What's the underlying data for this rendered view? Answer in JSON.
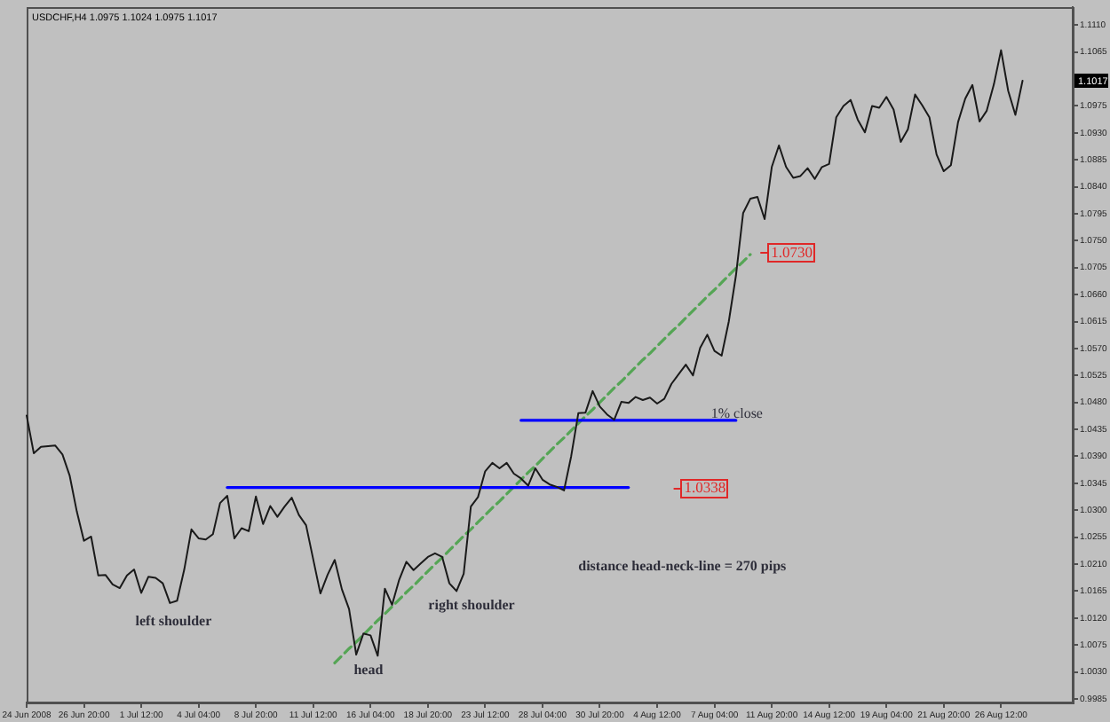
{
  "chart_data": {
    "type": "line",
    "title": "USDCHF,H4 1.0975 1.1024 1.0975 1.1017",
    "marker": "none",
    "categories": [
      "24 Jun 2008",
      null,
      null,
      null,
      null,
      null,
      null,
      null,
      "26 Jun 20:00",
      null,
      null,
      null,
      null,
      null,
      null,
      null,
      "1 Jul 12:00",
      null,
      null,
      null,
      null,
      null,
      null,
      null,
      "4 Jul 04:00",
      null,
      null,
      null,
      null,
      null,
      null,
      null,
      "8 Jul 20:00",
      null,
      null,
      null,
      null,
      null,
      null,
      null,
      "11 Jul 12:00",
      null,
      null,
      null,
      null,
      null,
      null,
      null,
      "16 Jul 04:00",
      null,
      null,
      null,
      null,
      null,
      null,
      null,
      "18 Jul 20:00",
      null,
      null,
      null,
      null,
      null,
      null,
      null,
      "23 Jul 12:00",
      null,
      null,
      null,
      null,
      null,
      null,
      null,
      "28 Jul 04:00",
      null,
      null,
      null,
      null,
      null,
      null,
      null,
      "30 Jul 20:00",
      null,
      null,
      null,
      null,
      null,
      null,
      null,
      "4 Aug 12:00",
      null,
      null,
      null,
      null,
      null,
      null,
      null,
      "7 Aug 04:00",
      null,
      null,
      null,
      null,
      null,
      null,
      null,
      "11 Aug 20:00",
      null,
      null,
      null,
      null,
      null,
      null,
      null,
      "14 Aug 12:00",
      null,
      null,
      null,
      null,
      null,
      null,
      null,
      "19 Aug 04:00",
      null,
      null,
      null,
      null,
      null,
      null,
      null,
      "21 Aug 20:00",
      null,
      null,
      null,
      null,
      null,
      null,
      null,
      "26 Aug 12:00",
      null,
      null,
      null,
      null,
      null,
      null,
      null,
      null,
      null,
      null
    ],
    "ylim": [
      0.9979,
      1.114
    ],
    "yticks": [
      0.9985,
      {
        "value": 1.003,
        "label": "1.0030"
      },
      1.0075,
      {
        "value": 1.012,
        "label": "1.0120"
      },
      1.0165,
      {
        "value": 1.021,
        "label": "1.0210"
      },
      1.0255,
      {
        "value": 1.03,
        "label": "1.0300"
      },
      1.0345,
      {
        "value": 1.039,
        "label": "1.0390"
      },
      1.0435,
      {
        "value": 1.048,
        "label": "1.0480"
      },
      1.0525,
      {
        "value": 1.057,
        "label": "1.0570"
      },
      1.0615,
      {
        "value": 1.066,
        "label": "1.0660"
      },
      1.0705,
      {
        "value": 1.075,
        "label": "1.0750"
      },
      1.0795,
      {
        "value": 1.084,
        "label": "1.0840"
      },
      1.0885,
      {
        "value": 1.093,
        "label": "1.0930"
      },
      1.0975,
      {
        "value": 1.102,
        "label": null
      },
      1.1065,
      {
        "value": 1.111,
        "label": "1.1110"
      }
    ],
    "series": [
      {
        "color": "#1a1a1a",
        "values": [
          1.0458,
          1.0395,
          1.0406,
          1.0407,
          1.0408,
          1.0393,
          1.0358,
          1.0298,
          1.0249,
          1.0256,
          1.0191,
          1.0192,
          1.0176,
          1.017,
          1.0191,
          1.0201,
          1.0162,
          1.0189,
          1.0187,
          1.0178,
          1.0145,
          1.0149,
          1.0201,
          1.0268,
          1.0253,
          1.0251,
          1.026,
          1.0312,
          1.0324,
          1.0253,
          1.027,
          1.0265,
          1.0323,
          1.0277,
          1.0307,
          1.0289,
          1.0306,
          1.0321,
          1.0292,
          1.0275,
          1.0218,
          1.0161,
          1.0192,
          1.0217,
          1.0168,
          1.0135,
          1.0059,
          1.0094,
          1.0091,
          1.0057,
          1.0169,
          1.0142,
          1.0184,
          1.0214,
          1.02,
          1.0211,
          1.0222,
          1.0228,
          1.0222,
          1.0178,
          1.0165,
          1.0194,
          1.0306,
          1.0322,
          1.0365,
          1.0379,
          1.037,
          1.0379,
          1.0361,
          1.0353,
          1.0341,
          1.037,
          1.0351,
          1.0343,
          1.0339,
          1.0333,
          1.039,
          1.0462,
          1.0463,
          1.0499,
          1.0473,
          1.046,
          1.0451,
          1.0481,
          1.0479,
          1.0489,
          1.0484,
          1.0488,
          1.0478,
          1.0486,
          1.0511,
          1.0527,
          1.0543,
          1.0525,
          1.0571,
          1.0593,
          1.0566,
          1.0558,
          1.0615,
          1.0692,
          1.0796,
          1.082,
          1.0823,
          1.0786,
          1.0873,
          1.0909,
          1.0873,
          1.0855,
          1.0858,
          1.0871,
          1.0853,
          1.0873,
          1.0878,
          1.0956,
          1.0975,
          1.0985,
          1.0952,
          1.0931,
          1.0975,
          1.0972,
          1.099,
          1.0969,
          1.0915,
          1.0936,
          1.0994,
          1.0976,
          1.0956,
          1.0894,
          1.0866,
          1.0876,
          1.0948,
          1.0987,
          1.101,
          1.0949,
          1.0967,
          1.1011,
          1.1068,
          1.1,
          1.096,
          1.1017,
          null,
          null,
          null,
          null,
          null,
          null,
          null
        ]
      },
      {
        "color": "#0000ff",
        "values": [
          null,
          null,
          null,
          null,
          null,
          null,
          null,
          null,
          null,
          null,
          null,
          null,
          null,
          null,
          null,
          null,
          null,
          null,
          null,
          null,
          null,
          null,
          null,
          null,
          null,
          null,
          null,
          null,
          1.0338,
          1.0338,
          1.0338,
          1.0338,
          1.0338,
          1.0338,
          1.0338,
          1.0338,
          1.0338,
          1.0338,
          1.0338,
          1.0338,
          1.0338,
          1.0338,
          1.0338,
          1.0338,
          1.0338,
          1.0338,
          1.0338,
          1.0338,
          1.0338,
          1.0338,
          1.0338,
          1.0338,
          1.0338,
          1.0338,
          1.0338,
          1.0338,
          1.0338,
          1.0338,
          1.0338,
          1.0338,
          1.0338,
          1.0338,
          1.0338,
          1.0338,
          1.0338,
          1.0338,
          1.0338,
          1.0338,
          1.0338,
          1.0338,
          1.0338,
          1.0338,
          1.0338,
          1.0338,
          1.0338,
          1.0338,
          1.0338,
          1.0338,
          1.0338,
          1.0338,
          1.0338,
          1.0338,
          1.0338,
          1.0338,
          1.0338,
          null,
          null,
          null,
          null,
          null,
          null,
          null,
          null,
          null,
          null,
          null,
          null,
          null,
          null,
          null,
          null,
          null,
          null,
          null,
          null,
          null,
          null,
          null,
          null,
          null,
          null,
          null,
          null,
          null,
          null,
          null,
          null,
          null,
          null,
          null,
          null,
          null,
          null,
          null,
          null,
          null,
          null,
          null,
          null,
          null,
          null,
          null,
          null,
          null,
          null,
          null,
          null,
          null,
          null,
          null,
          null,
          null,
          null,
          null,
          null,
          null,
          null
        ]
      },
      {
        "color": "#0000ff",
        "values": [
          null,
          null,
          null,
          null,
          null,
          null,
          null,
          null,
          null,
          null,
          null,
          null,
          null,
          null,
          null,
          null,
          null,
          null,
          null,
          null,
          null,
          null,
          null,
          null,
          null,
          null,
          null,
          null,
          null,
          null,
          null,
          null,
          null,
          null,
          null,
          null,
          null,
          null,
          null,
          null,
          null,
          null,
          null,
          null,
          null,
          null,
          null,
          null,
          null,
          null,
          null,
          null,
          null,
          null,
          null,
          null,
          null,
          null,
          null,
          null,
          null,
          null,
          null,
          null,
          null,
          null,
          null,
          null,
          null,
          1.045,
          1.045,
          1.045,
          1.045,
          1.045,
          1.045,
          1.045,
          1.045,
          1.045,
          1.045,
          1.045,
          1.045,
          1.045,
          1.045,
          1.045,
          1.045,
          1.045,
          1.045,
          1.045,
          1.045,
          1.045,
          1.045,
          1.045,
          1.045,
          1.045,
          1.045,
          1.045,
          1.045,
          1.045,
          1.045,
          1.045,
          null,
          null,
          null,
          null,
          null,
          null,
          null,
          null,
          null,
          null,
          null,
          null,
          null,
          null,
          null,
          null,
          null,
          null,
          null,
          null,
          null,
          null,
          null,
          null,
          null,
          null,
          null,
          null,
          null,
          null,
          null,
          null,
          null,
          null,
          null,
          null,
          null,
          null,
          null,
          null,
          null,
          null,
          null,
          null,
          null,
          null,
          null
        ]
      },
      {
        "color": "#55a555",
        "line_style": "dashed",
        "values": [
          null,
          null,
          null,
          null,
          null,
          null,
          null,
          null,
          null,
          null,
          null,
          null,
          null,
          null,
          null,
          null,
          null,
          null,
          null,
          null,
          null,
          null,
          null,
          null,
          null,
          null,
          null,
          null,
          null,
          null,
          null,
          null,
          null,
          null,
          null,
          null,
          null,
          null,
          null,
          null,
          null,
          null,
          null,
          1.0045,
          1.0057,
          1.0069,
          1.008,
          1.0092,
          1.0104,
          1.0116,
          1.0127,
          1.0139,
          1.0151,
          1.0163,
          1.0174,
          1.0186,
          1.0198,
          1.021,
          1.0221,
          1.0233,
          1.0245,
          1.0257,
          1.0268,
          1.028,
          1.0292,
          1.0304,
          1.0315,
          1.0327,
          1.0339,
          1.0351,
          1.0363,
          1.0374,
          1.0386,
          1.0398,
          1.041,
          1.0421,
          1.0433,
          1.0445,
          1.0457,
          1.0468,
          1.048,
          1.0492,
          1.0504,
          1.0515,
          1.0527,
          1.0539,
          1.0551,
          1.0562,
          1.0574,
          1.0586,
          1.0598,
          1.0609,
          1.0621,
          1.0633,
          1.0645,
          1.0657,
          1.0668,
          1.068,
          1.0692,
          1.0704,
          1.0715,
          1.0727,
          null,
          null,
          null,
          null,
          null,
          null,
          null,
          null,
          null,
          null,
          null,
          null,
          null,
          null,
          null,
          null,
          null,
          null,
          null,
          null,
          null,
          null,
          null,
          null,
          null,
          null,
          null,
          null,
          null,
          null,
          null,
          null,
          null,
          null,
          null,
          null,
          null,
          null,
          null,
          null,
          null,
          null,
          null,
          null,
          null
        ]
      }
    ],
    "annotations": [
      "left shoulder",
      "head",
      "right shoulder",
      "1% close",
      "1.0338",
      "1.0730",
      {
        "text": "1.1017",
        "y": 1.1017
      },
      "distance head-neck-line = 270 pips"
    ]
  }
}
